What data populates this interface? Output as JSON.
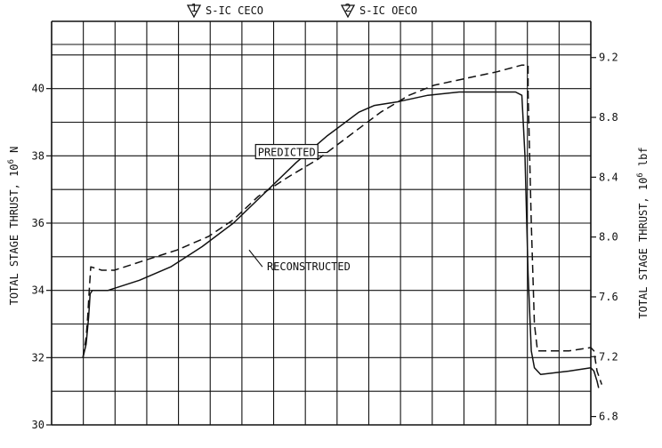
{
  "chart_data": {
    "type": "line",
    "title": "",
    "legend": [
      {
        "symbol": "1",
        "label": "S-IC CECO"
      },
      {
        "symbol": "2",
        "label": "S-IC OECO"
      }
    ],
    "y_left": {
      "label": "TOTAL STAGE THRUST,",
      "label_unit": "10",
      "label_unit_exp": "6",
      "label_unit_tail": "N",
      "range": [
        30,
        42
      ],
      "ticks": [
        30,
        32,
        34,
        36,
        38,
        40
      ]
    },
    "y_right": {
      "label": "TOTAL STAGE THRUST,",
      "label_unit": "10",
      "label_unit_exp": "6",
      "label_unit_tail": "lbf",
      "range": [
        6.744,
        9.442
      ],
      "ticks": [
        "6.8",
        "7.2",
        "7.6",
        "8.0",
        "8.4",
        "8.8",
        "9.2"
      ]
    },
    "x_range": [
      0,
      172
    ],
    "grid": true,
    "series": [
      {
        "name": "PREDICTED",
        "style": "dashed",
        "points": [
          [
            10,
            32.0
          ],
          [
            11,
            32.6
          ],
          [
            11.5,
            33.2
          ],
          [
            12,
            34.0
          ],
          [
            12.5,
            34.7
          ],
          [
            16,
            34.6
          ],
          [
            20,
            34.6
          ],
          [
            30,
            34.9
          ],
          [
            40,
            35.2
          ],
          [
            50,
            35.6
          ],
          [
            58,
            36.1
          ],
          [
            66,
            36.8
          ],
          [
            76,
            37.4
          ],
          [
            85,
            37.9
          ],
          [
            95,
            38.6
          ],
          [
            105,
            39.3
          ],
          [
            114,
            39.8
          ],
          [
            122,
            40.1
          ],
          [
            132,
            40.3
          ],
          [
            142,
            40.5
          ],
          [
            150,
            40.7
          ],
          [
            152,
            40.7
          ],
          [
            152,
            39.9
          ],
          [
            153,
            36.0
          ],
          [
            154,
            33.0
          ],
          [
            155,
            32.2
          ],
          [
            159,
            32.2
          ],
          [
            165,
            32.2
          ],
          [
            172,
            32.3
          ],
          [
            173,
            32.2
          ],
          [
            174,
            31.6
          ],
          [
            175.5,
            31.2
          ]
        ]
      },
      {
        "name": "RECONSTRUCTED",
        "style": "solid",
        "points": [
          [
            10,
            32.0
          ],
          [
            11,
            32.4
          ],
          [
            11.8,
            33.2
          ],
          [
            12.3,
            33.9
          ],
          [
            13,
            34.0
          ],
          [
            18,
            34.0
          ],
          [
            28,
            34.3
          ],
          [
            38,
            34.7
          ],
          [
            48,
            35.3
          ],
          [
            58,
            36.0
          ],
          [
            68,
            36.9
          ],
          [
            78,
            37.8
          ],
          [
            88,
            38.6
          ],
          [
            98,
            39.3
          ],
          [
            103,
            39.5
          ],
          [
            110,
            39.6
          ],
          [
            120,
            39.8
          ],
          [
            130,
            39.9
          ],
          [
            137,
            39.9
          ],
          [
            148,
            39.9
          ],
          [
            150,
            39.8
          ],
          [
            151,
            38.0
          ],
          [
            152,
            34.5
          ],
          [
            153,
            32.2
          ],
          [
            154,
            31.7
          ],
          [
            156,
            31.5
          ],
          [
            165,
            31.6
          ],
          [
            172,
            31.7
          ],
          [
            173,
            31.6
          ],
          [
            174,
            31.3
          ],
          [
            174.5,
            31.1
          ]
        ]
      }
    ],
    "annotations": [
      {
        "text": "PREDICTED",
        "series": "PREDICTED",
        "at": [
          75,
          38.1
        ],
        "leader_to": [
          88,
          38.1
        ]
      },
      {
        "text": "RECONSTRUCTED",
        "series": "RECONSTRUCTED",
        "at": [
          82,
          34.7
        ],
        "leader_to": [
          63,
          35.2
        ]
      }
    ]
  }
}
